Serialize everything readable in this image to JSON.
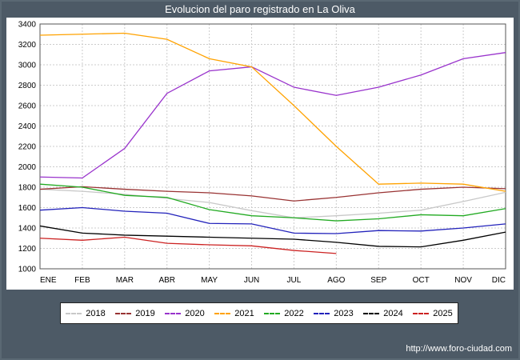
{
  "window": {
    "title": "Evolucion del paro registrado en La Oliva",
    "url": "http://www.foro-ciudad.com",
    "background": "#4d5a66"
  },
  "chart_data": {
    "type": "line",
    "title": "Evolucion del paro registrado en La Oliva",
    "categories": [
      "ENE",
      "FEB",
      "MAR",
      "ABR",
      "MAY",
      "JUN",
      "JUL",
      "AGO",
      "SEP",
      "OCT",
      "NOV",
      "DIC"
    ],
    "ylabel": "",
    "xlabel": "",
    "ylim": [
      1000,
      3400
    ],
    "ytick_step": 200,
    "grid": true,
    "legend_position": "bottom",
    "series": [
      {
        "name": "2018",
        "color": "#c8c8c8",
        "values": [
          1780,
          1760,
          1730,
          1690,
          1650,
          1570,
          1500,
          1520,
          1545,
          1575,
          1660,
          1750
        ]
      },
      {
        "name": "2019",
        "color": "#993333",
        "values": [
          1780,
          1805,
          1780,
          1760,
          1745,
          1715,
          1665,
          1700,
          1745,
          1780,
          1800,
          1785
        ]
      },
      {
        "name": "2020",
        "color": "#9933cc",
        "values": [
          1900,
          1890,
          2180,
          2720,
          2940,
          2980,
          2780,
          2700,
          2780,
          2900,
          3060,
          3120
        ]
      },
      {
        "name": "2021",
        "color": "#ffa200",
        "values": [
          3290,
          3300,
          3310,
          3250,
          3060,
          2980,
          2600,
          2200,
          1830,
          1840,
          1830,
          1760
        ]
      },
      {
        "name": "2022",
        "color": "#22aa22",
        "values": [
          1830,
          1800,
          1720,
          1700,
          1580,
          1520,
          1500,
          1470,
          1490,
          1530,
          1520,
          1590
        ]
      },
      {
        "name": "2023",
        "color": "#2222bb",
        "values": [
          1575,
          1600,
          1565,
          1545,
          1445,
          1440,
          1350,
          1345,
          1375,
          1370,
          1400,
          1440
        ]
      },
      {
        "name": "2024",
        "color": "#000000",
        "values": [
          1420,
          1350,
          1330,
          1320,
          1310,
          1300,
          1290,
          1260,
          1220,
          1215,
          1280,
          1360
        ]
      },
      {
        "name": "2025",
        "color": "#cc2222",
        "values": [
          1300,
          1280,
          1310,
          1250,
          1235,
          1225,
          1180,
          1150
        ]
      }
    ]
  }
}
